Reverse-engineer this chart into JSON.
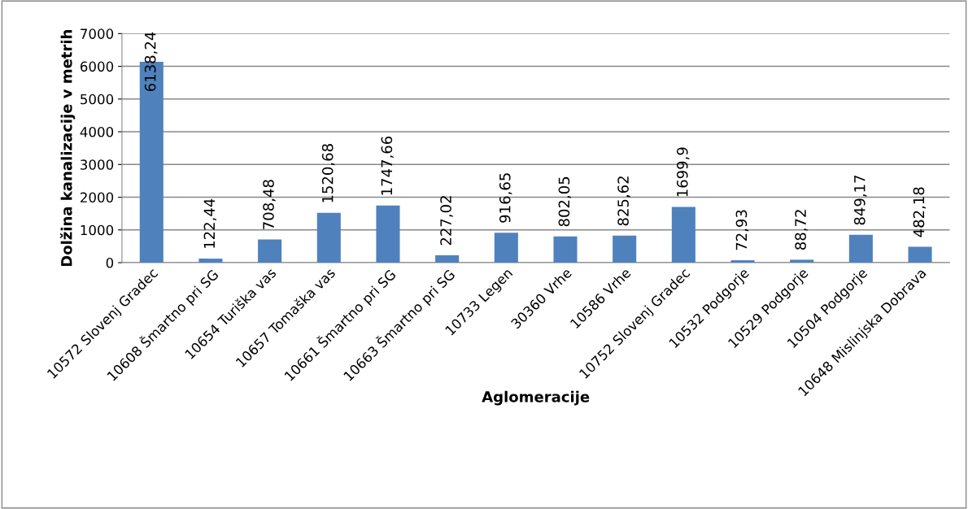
{
  "chart_data": {
    "type": "bar",
    "xlabel": "Aglomeracije",
    "ylabel": "Dolžina kanalizacije v metrih",
    "categories": [
      "10572 Slovenj Gradec",
      "10608 Šmartno pri SG",
      "10654 Turiška vas",
      "10657 Tomaška vas",
      "10661 Šmartno pri SG",
      "10663 Šmartno pri SG",
      "10733 Legen",
      "30360 Vrhe",
      "10586 Vrhe",
      "10752 Slovenj Gradec",
      "10532 Podgorje",
      "10529 Podgorje",
      "10504 Podgorje",
      "10648 Mislinjska Dobrava"
    ],
    "values": [
      6138.24,
      122.44,
      708.48,
      1520.68,
      1747.66,
      227.02,
      916.65,
      802.05,
      825.62,
      1699.9,
      72.93,
      88.72,
      849.17,
      482.18
    ],
    "value_labels": [
      "6138,24",
      "122,44",
      "708,48",
      "1520,68",
      "1747,66",
      "227,02",
      "916,65",
      "802,05",
      "825,62",
      "1699,9",
      "72,93",
      "88,72",
      "849,17",
      "482,18"
    ],
    "color": "#4f81bd",
    "ylim": [
      0,
      7000
    ],
    "yticks": [
      0,
      1000,
      2000,
      3000,
      4000,
      5000,
      6000,
      7000
    ],
    "grid": "y",
    "legend": false
  }
}
